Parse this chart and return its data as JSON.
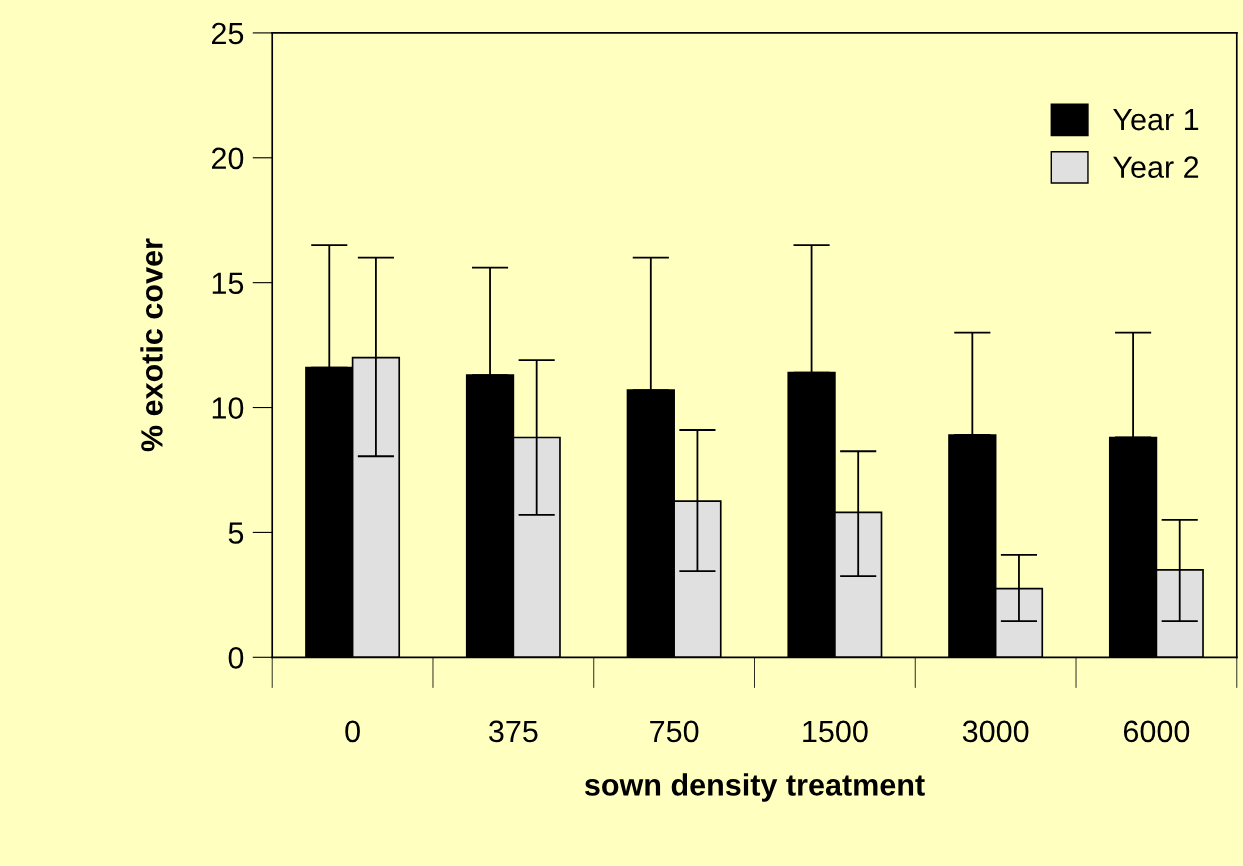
{
  "chart_data": {
    "type": "bar",
    "xlabel": "sown density treatment",
    "ylabel": "% exotic cover",
    "categories": [
      "0",
      "375",
      "750",
      "1500",
      "3000",
      "6000"
    ],
    "series": [
      {
        "name": "Year 1",
        "color": "#000000",
        "values": [
          11.6,
          11.3,
          10.7,
          11.4,
          8.9,
          8.8
        ],
        "errors": [
          [
            11.6,
            16.5
          ],
          [
            11.3,
            15.6
          ],
          [
            10.7,
            16.0
          ],
          [
            11.4,
            16.5
          ],
          [
            8.9,
            13.0
          ],
          [
            8.8,
            13.0
          ]
        ]
      },
      {
        "name": "Year 2",
        "color": "#e0e0e0",
        "values": [
          12.0,
          8.8,
          6.25,
          5.8,
          2.75,
          3.5
        ],
        "errors": [
          [
            8.05,
            16.0
          ],
          [
            5.7,
            11.9
          ],
          [
            3.45,
            9.1
          ],
          [
            3.25,
            8.25
          ],
          [
            1.45,
            4.1
          ],
          [
            1.45,
            5.5
          ]
        ]
      }
    ],
    "ylim": [
      0,
      25
    ],
    "yticks": [
      0,
      5,
      10,
      15,
      20,
      25
    ],
    "grid": false,
    "legend": "top right"
  }
}
